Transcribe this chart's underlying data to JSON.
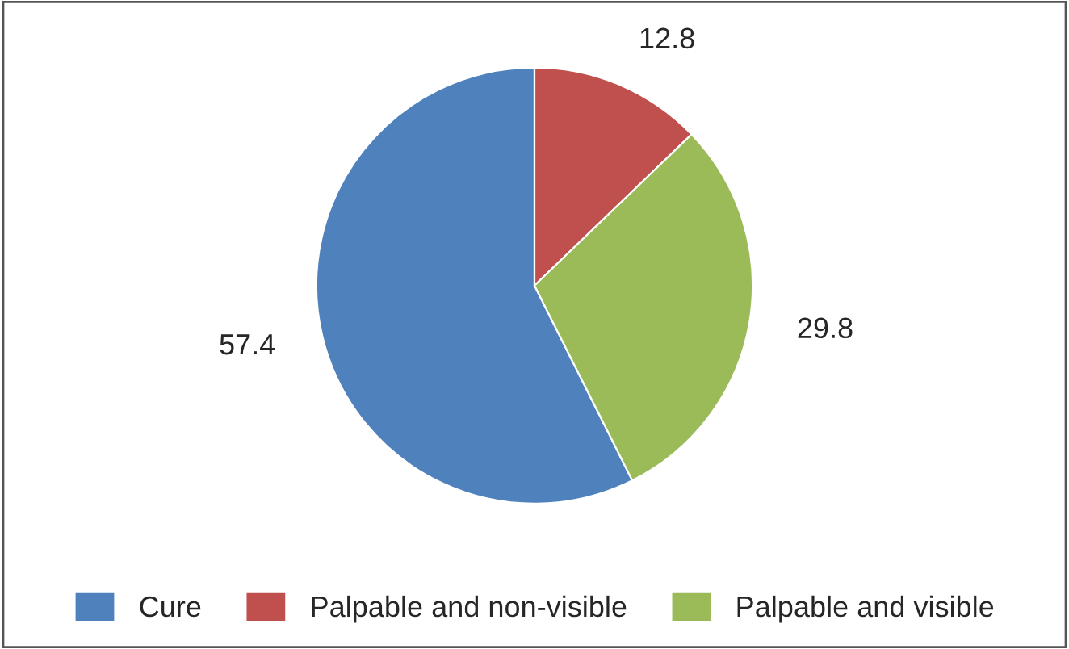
{
  "chart_data": {
    "type": "pie",
    "categories": [
      "Cure",
      "Palpable and non-visible",
      "Palpable and visible"
    ],
    "values": [
      57.4,
      12.8,
      29.8
    ],
    "colors": [
      "#4f81bd",
      "#c0504d",
      "#9bbb59"
    ],
    "data_labels": true,
    "legend": "bottom"
  }
}
